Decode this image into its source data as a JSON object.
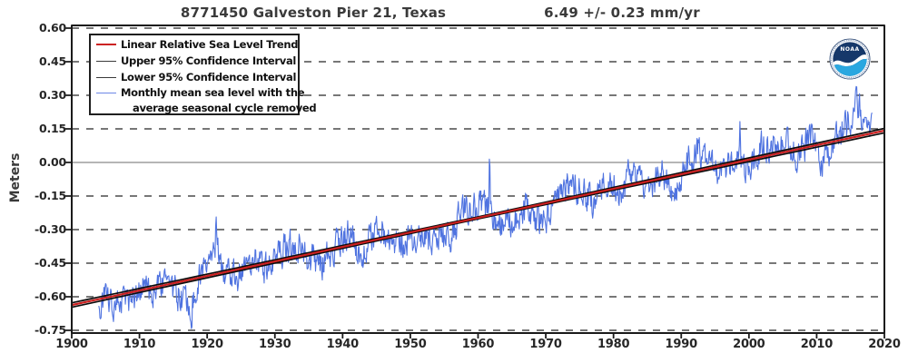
{
  "header": {
    "station_title": "8771450 Galveston Pier 21, Texas",
    "trend_title": "6.49 +/-  0.23 mm/yr"
  },
  "y_axis": {
    "title": "Meters"
  },
  "legend": {
    "items": [
      {
        "label": "Linear Relative Sea Level Trend",
        "color": "#cc2222",
        "thickness": 2.2
      },
      {
        "label": "Upper 95% Confidence Interval",
        "color": "#3a3a3a",
        "thickness": 1.8
      },
      {
        "label": "Lower 95% Confidence Interval",
        "color": "#3a3a3a",
        "thickness": 1.8
      },
      {
        "label": "Monthly mean sea level with the",
        "label_line2": "average seasonal cycle removed",
        "color": "#6c87e6",
        "thickness": 1.8
      }
    ]
  },
  "logo": {
    "name": "NOAA",
    "text": "NOAA",
    "navy": "#16386a",
    "cyan": "#2aa7e0"
  },
  "chart_data": {
    "type": "line",
    "title": "8771450 Galveston Pier 21, Texas",
    "trend_annotation": "6.49 +/-  0.23 mm/yr",
    "xlabel": "",
    "ylabel": "Meters",
    "xlim": [
      1900,
      2020
    ],
    "ylim": [
      -0.75,
      0.6
    ],
    "xticks": [
      1900,
      1910,
      1920,
      1930,
      1940,
      1950,
      1960,
      1970,
      1980,
      1990,
      2000,
      2010,
      2020
    ],
    "ytick_values": [
      0.6,
      0.45,
      0.3,
      0.15,
      0.0,
      -0.15,
      -0.3,
      -0.45,
      -0.6,
      -0.75
    ],
    "ytick_labels": [
      "0.60",
      "0.45",
      "0.30",
      "0.15",
      "0.00",
      "-0.15",
      "-0.30",
      "-0.45",
      "-0.60",
      "-0.75"
    ],
    "grid": {
      "dashed_levels": [
        0.6,
        0.45,
        0.3,
        0.15,
        -0.15,
        -0.3,
        -0.45,
        -0.6,
        -0.75
      ],
      "solid_levels": [
        0.0
      ],
      "dashed_color": "#3d3d3d",
      "solid_color": "#8a8a8a",
      "legend_position": "upper-left"
    },
    "colors": {
      "monthly_line": "#4f73e0",
      "trend_line": "#cc2020",
      "confidence_line": "#0d0d0d",
      "axis_border": "#1a1a1a"
    },
    "trend": {
      "slope_mm_per_yr": 6.49,
      "ci_mm_per_yr": 0.23,
      "value_1900_m": -0.637,
      "value_2020_m": 0.142,
      "ci_half_width_center_m": 0.0045,
      "ci_half_width_edge_m": 0.01,
      "ci_pivot_year": 1960
    },
    "series": [
      {
        "name": "Linear Relative Sea Level Trend",
        "role": "trend"
      },
      {
        "name": "Upper 95% Confidence Interval",
        "role": "ci-upper"
      },
      {
        "name": "Lower 95% Confidence Interval",
        "role": "ci-lower"
      },
      {
        "name": "Monthly mean sea level with the average seasonal cycle removed",
        "role": "monthly"
      }
    ],
    "monthly": {
      "start_year": 1904.0,
      "end_year": 2018.2,
      "points_per_year": 12,
      "noise_seed": 8771450,
      "noise_amp": 0.062,
      "noise_persistence": 0.4,
      "anchors": [
        [
          1904,
          -0.01
        ],
        [
          1906,
          -0.03
        ],
        [
          1908,
          -0.05
        ],
        [
          1910,
          0.02
        ],
        [
          1912,
          -0.02
        ],
        [
          1914,
          0.01
        ],
        [
          1916,
          -0.06
        ],
        [
          1917.6,
          -0.11
        ],
        [
          1919,
          0.04
        ],
        [
          1921.2,
          0.13
        ],
        [
          1922.5,
          0.0
        ],
        [
          1925,
          -0.03
        ],
        [
          1927,
          0.02
        ],
        [
          1929,
          -0.03
        ],
        [
          1931,
          0.04
        ],
        [
          1933,
          0.07
        ],
        [
          1935,
          -0.02
        ],
        [
          1937,
          -0.06
        ],
        [
          1939,
          0.0
        ],
        [
          1941,
          0.06
        ],
        [
          1942.5,
          -0.07
        ],
        [
          1944,
          0.02
        ],
        [
          1946,
          0.04
        ],
        [
          1948,
          -0.04
        ],
        [
          1950,
          -0.02
        ],
        [
          1952,
          -0.05
        ],
        [
          1954,
          -0.03
        ],
        [
          1956,
          -0.08
        ],
        [
          1957.5,
          0.05
        ],
        [
          1959,
          0.04
        ],
        [
          1961,
          0.06
        ],
        [
          1963,
          -0.07
        ],
        [
          1965,
          -0.04
        ],
        [
          1967,
          -0.01
        ],
        [
          1969,
          -0.08
        ],
        [
          1971,
          -0.05
        ],
        [
          1973,
          0.06
        ],
        [
          1975,
          0.04
        ],
        [
          1977,
          -0.04
        ],
        [
          1979,
          0.05
        ],
        [
          1981,
          -0.03
        ],
        [
          1983,
          0.08
        ],
        [
          1985,
          -0.04
        ],
        [
          1987,
          0.04
        ],
        [
          1989,
          -0.07
        ],
        [
          1991,
          0.06
        ],
        [
          1992.5,
          0.08
        ],
        [
          1994,
          0.0
        ],
        [
          1996,
          -0.03
        ],
        [
          1998,
          0.05
        ],
        [
          2000,
          -0.06
        ],
        [
          2002,
          0.05
        ],
        [
          2004,
          0.04
        ],
        [
          2005.5,
          0.06
        ],
        [
          2007,
          -0.03
        ],
        [
          2009,
          0.03
        ],
        [
          2011,
          -0.08
        ],
        [
          2013,
          0.0
        ],
        [
          2015,
          0.09
        ],
        [
          2016,
          0.16
        ],
        [
          2017,
          0.04
        ],
        [
          2018.2,
          0.0
        ]
      ],
      "spike_events": [
        [
          1917.7,
          -0.1
        ],
        [
          1921.3,
          0.18
        ],
        [
          1961.7,
          0.26
        ],
        [
          1983.7,
          0.1
        ],
        [
          1998.7,
          0.13
        ],
        [
          2015.9,
          0.1
        ]
      ]
    }
  }
}
